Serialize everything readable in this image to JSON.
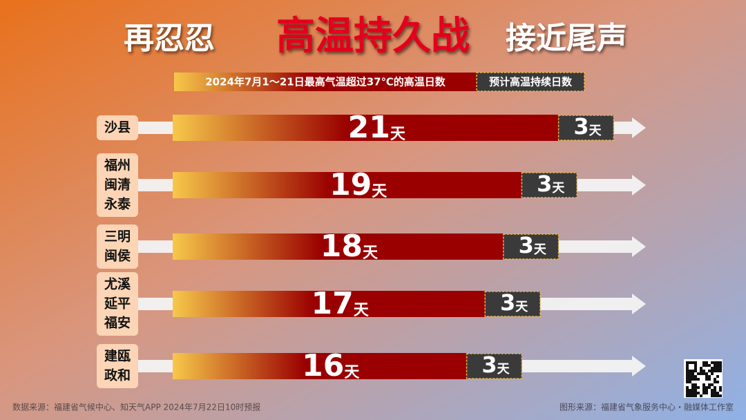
{
  "chart_data": {
    "type": "bar",
    "stacked": true,
    "orientation": "horizontal",
    "title": {
      "left": "再忍忍",
      "highlight": "高温持久战",
      "right": "接近尾声"
    },
    "categories": [
      [
        "沙县"
      ],
      [
        "福州",
        "闽清",
        "永泰"
      ],
      [
        "三明",
        "闽侯"
      ],
      [
        "尤溪",
        "延平",
        "福安"
      ],
      [
        "建瓯",
        "政和"
      ]
    ],
    "unit": "天",
    "series": [
      {
        "name": "2024年7月1～21日最高气温超过37℃的高温日数",
        "color": "#9a0000",
        "values": [
          21,
          19,
          18,
          17,
          16
        ]
      },
      {
        "name": "预计高温持续日数",
        "color": "#3a3a3a",
        "values": [
          3,
          3,
          3,
          3,
          3
        ]
      }
    ],
    "footer": {
      "left": "数据来源：福建省气候中心、知天气APP  2024年7月22日10时预报",
      "right": "图形来源：福建省气象服务中心・融媒体工作室"
    }
  }
}
